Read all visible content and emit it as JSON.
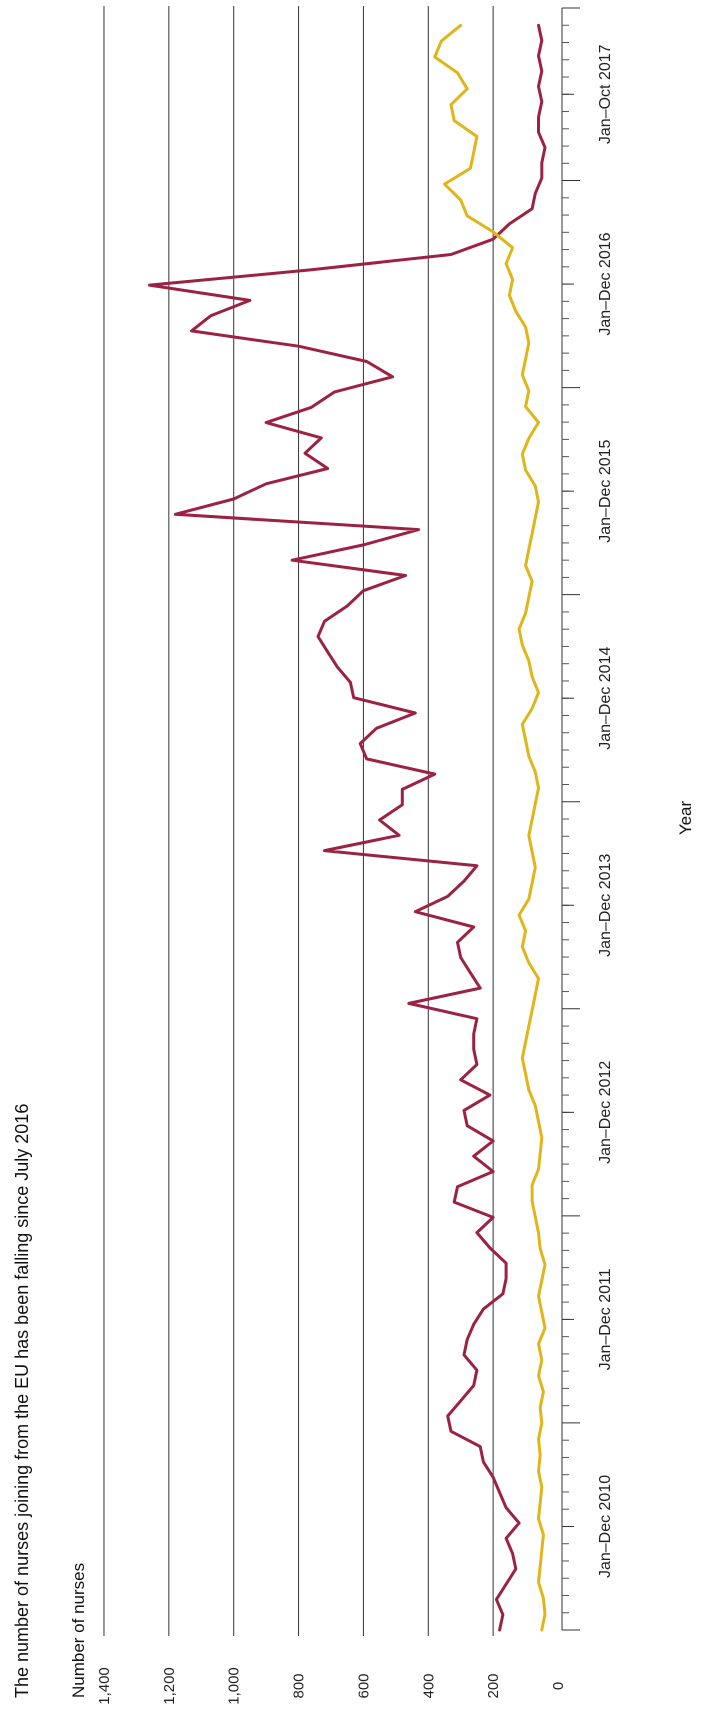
{
  "chart_data": {
    "type": "line",
    "title": "The number of nurses joining from the EU has been falling since July 2016",
    "ylabel": "Number of nurses",
    "xlabel": "Year",
    "ylim": [
      0,
      1400
    ],
    "yticks": [
      0,
      200,
      400,
      600,
      800,
      1000,
      1200,
      1400
    ],
    "ytick_labels": [
      "0",
      "200",
      "400",
      "600",
      "800",
      "1,000",
      "1,200",
      "1,400"
    ],
    "grid": true,
    "orientation": "rotated-90",
    "x_range_months": 94,
    "periods": [
      {
        "label": "Jan–Dec 2010",
        "months": 12
      },
      {
        "label": "Jan–Dec 2011",
        "months": 12
      },
      {
        "label": "Jan–Dec 2012",
        "months": 12
      },
      {
        "label": "Jan–Dec 2013",
        "months": 12
      },
      {
        "label": "Jan–Dec 2014",
        "months": 12
      },
      {
        "label": "Jan–Dec 2015",
        "months": 12
      },
      {
        "label": "Jan–Dec 2016",
        "months": 12
      },
      {
        "label": "Jan–Oct 2017",
        "months": 10
      }
    ],
    "series": [
      {
        "color": "#9b2242",
        "values": [
          180,
          170,
          190,
          160,
          130,
          140,
          160,
          120,
          160,
          180,
          200,
          230,
          240,
          330,
          340,
          300,
          260,
          250,
          290,
          280,
          260,
          230,
          170,
          160,
          160,
          210,
          250,
          200,
          320,
          310,
          200,
          260,
          200,
          280,
          290,
          210,
          300,
          250,
          260,
          260,
          250,
          460,
          240,
          270,
          300,
          310,
          260,
          440,
          340,
          290,
          250,
          720,
          490,
          550,
          480,
          480,
          380,
          590,
          610,
          560,
          440,
          630,
          640,
          680,
          710,
          740,
          720,
          650,
          600,
          470,
          820,
          600,
          430,
          1180,
          1000,
          900,
          710,
          780,
          730,
          900,
          760,
          690,
          510,
          590,
          800,
          1130,
          1070,
          950,
          1260,
          760,
          330,
          200,
          150,
          80,
          70,
          50,
          50,
          40,
          60,
          60,
          50,
          60,
          50,
          60,
          50,
          60
        ],
        "x_start": 0
      },
      {
        "color": "#e0b51a",
        "values": [
          50,
          40,
          45,
          60,
          55,
          50,
          45,
          60,
          55,
          50,
          60,
          55,
          60,
          50,
          55,
          45,
          60,
          50,
          60,
          40,
          50,
          60,
          50,
          40,
          55,
          60,
          70,
          80,
          80,
          60,
          55,
          50,
          60,
          70,
          90,
          100,
          110,
          100,
          90,
          80,
          70,
          60,
          90,
          110,
          100,
          120,
          90,
          80,
          70,
          80,
          90,
          80,
          70,
          60,
          70,
          90,
          100,
          110,
          80,
          60,
          80,
          90,
          110,
          120,
          100,
          90,
          80,
          100,
          90,
          80,
          70,
          60,
          70,
          100,
          110,
          90,
          60,
          100,
          90,
          110,
          100,
          90,
          100,
          130,
          150,
          140,
          160,
          140,
          200,
          280,
          300,
          350,
          270,
          260,
          250,
          320,
          330,
          280,
          310,
          380,
          360,
          300
        ],
        "x_start": 0
      }
    ]
  }
}
